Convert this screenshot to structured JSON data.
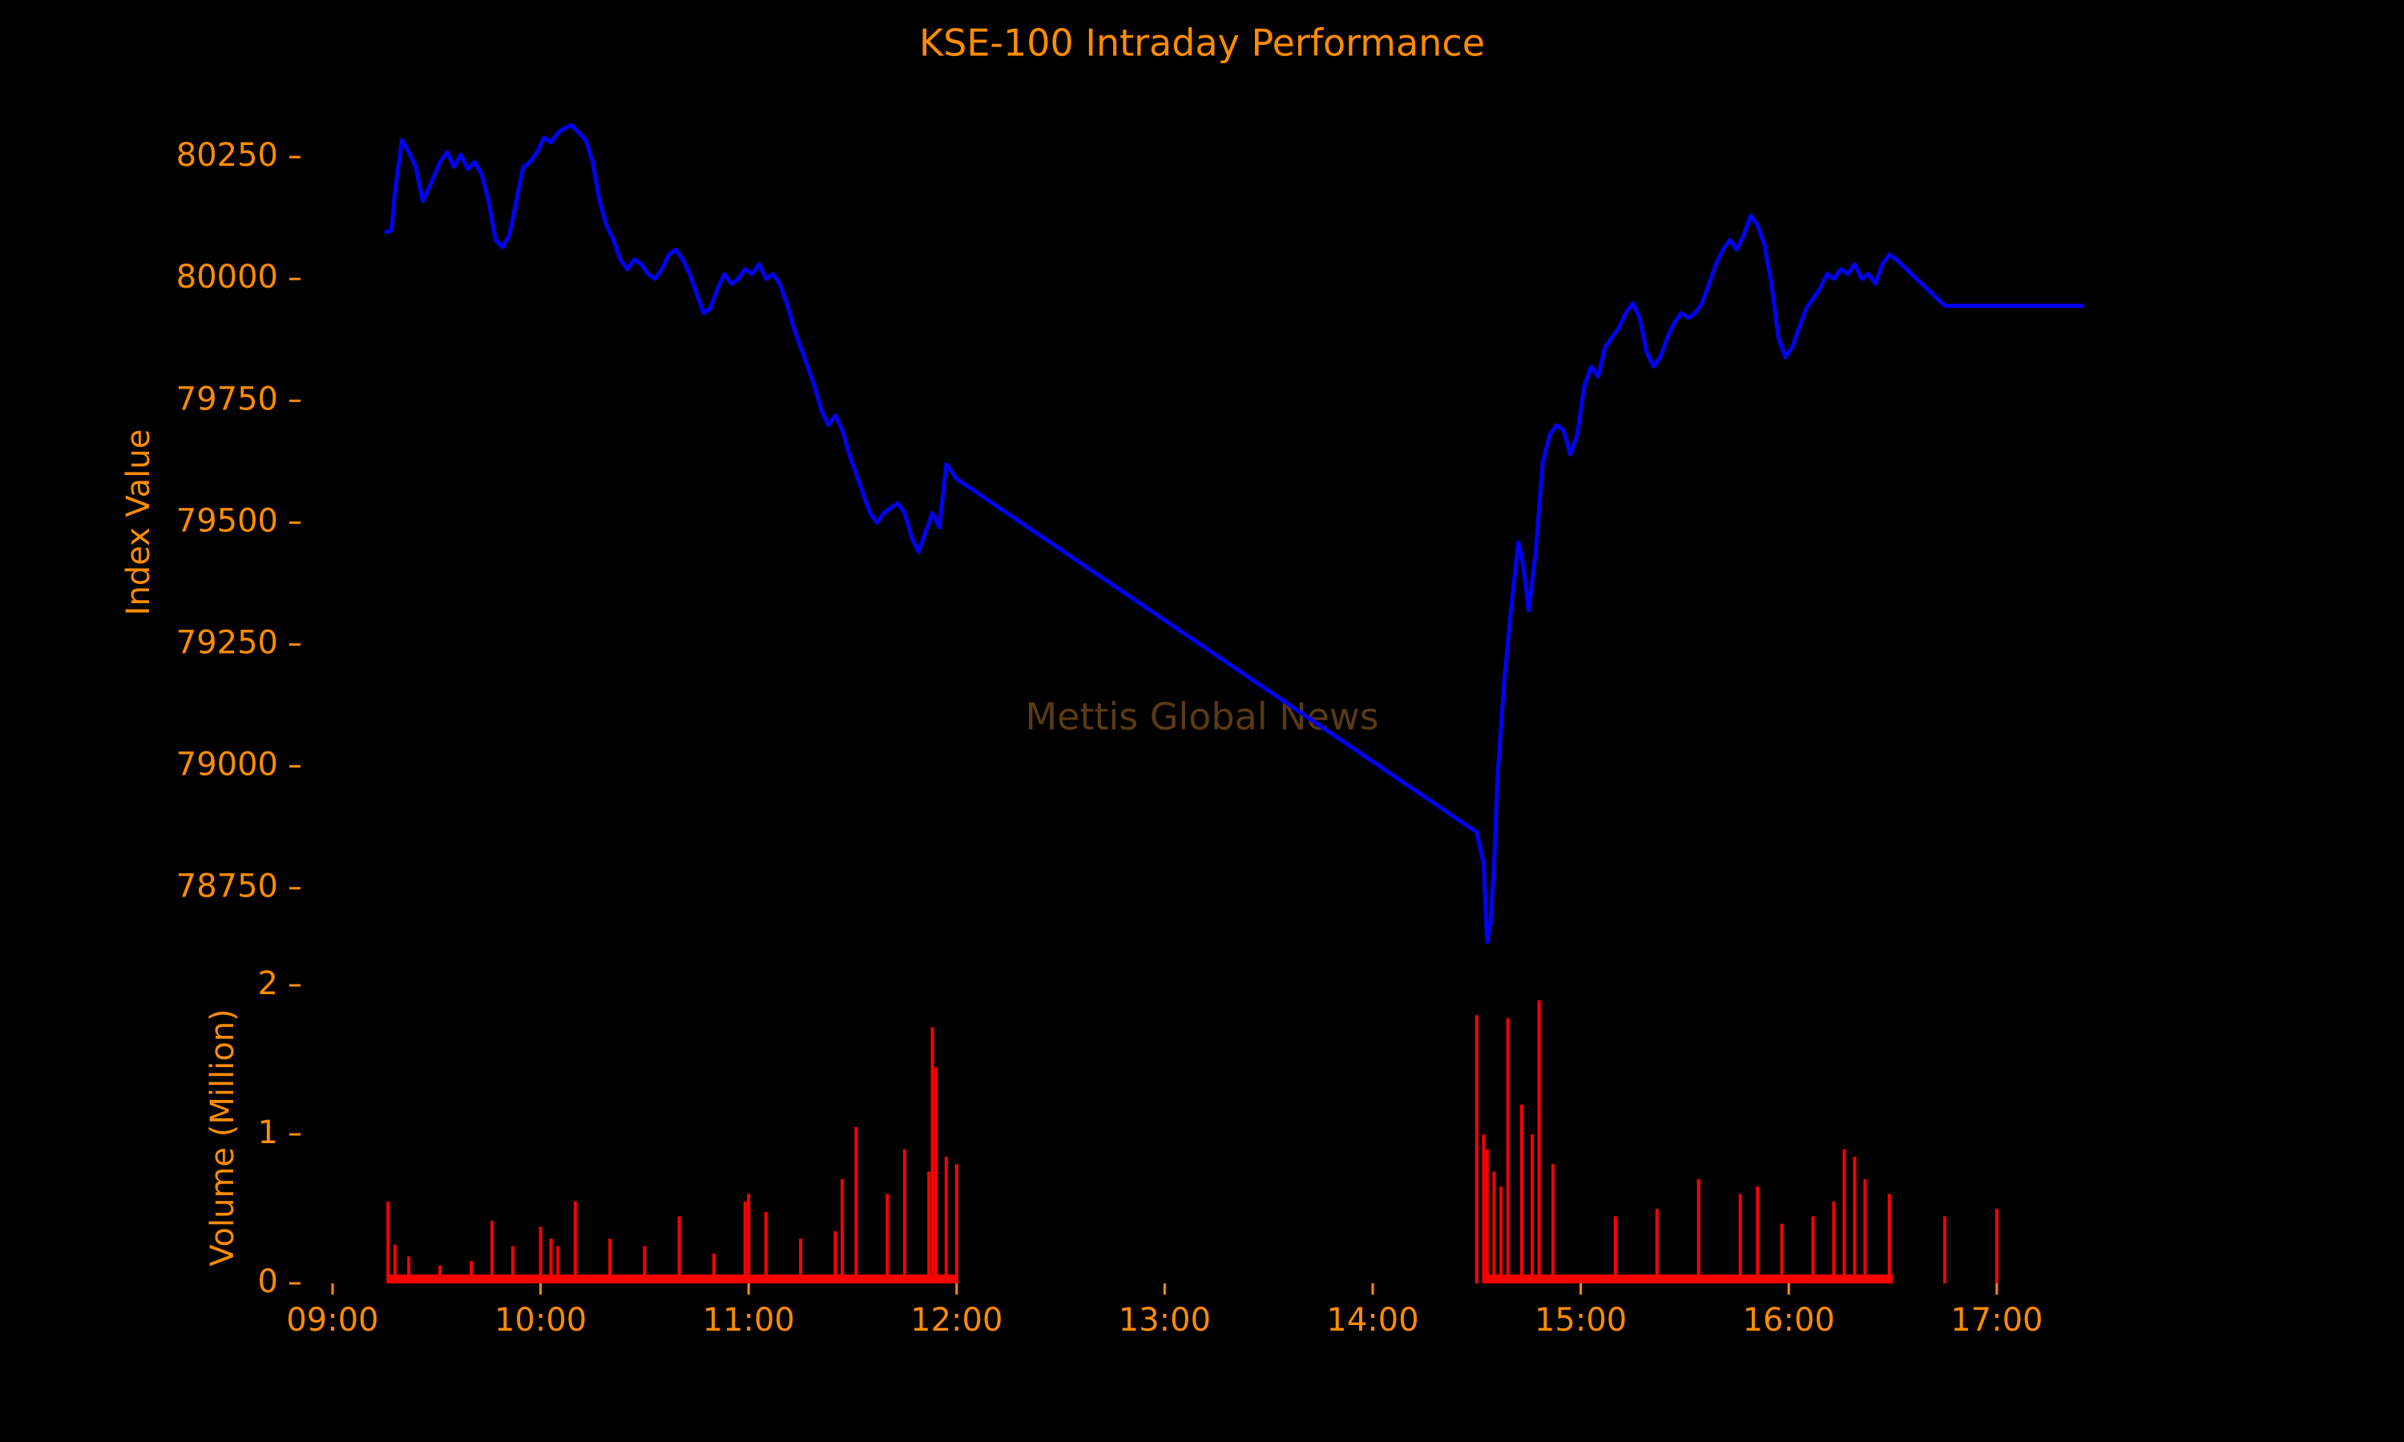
{
  "chart_data": {
    "type": "line",
    "title": "KSE-100 Intraday Performance",
    "watermark": "Mettis Global News",
    "colors": {
      "background": "#000000",
      "text": "#ff8c00",
      "index_line": "#0000ff",
      "volume_bars": "#ff0000",
      "watermark": "#5a3a14"
    },
    "grid": false,
    "x_axis": {
      "xlim": [
        "09:00",
        "17:25"
      ],
      "ticks": [
        "09:00",
        "10:00",
        "11:00",
        "12:00",
        "13:00",
        "14:00",
        "15:00",
        "16:00",
        "17:00"
      ]
    },
    "index_panel": {
      "ylabel": "Index Value",
      "ylim": [
        78600,
        80380
      ],
      "yticks": [
        78750,
        79000,
        79250,
        79500,
        79750,
        80000,
        80250
      ],
      "series": [
        {
          "values": [
            [
              "09:15",
              80095
            ],
            [
              "09:17",
              80100
            ],
            [
              "09:18",
              80180
            ],
            [
              "09:20",
              80285
            ],
            [
              "09:22",
              80260
            ],
            [
              "09:24",
              80230
            ],
            [
              "09:26",
              80160
            ],
            [
              "09:28",
              80190
            ],
            [
              "09:31",
              80240
            ],
            [
              "09:33",
              80260
            ],
            [
              "09:35",
              80230
            ],
            [
              "09:37",
              80255
            ],
            [
              "09:39",
              80225
            ],
            [
              "09:41",
              80240
            ],
            [
              "09:43",
              80215
            ],
            [
              "09:45",
              80160
            ],
            [
              "09:47",
              80080
            ],
            [
              "09:49",
              80065
            ],
            [
              "09:51",
              80090
            ],
            [
              "09:53",
              80160
            ],
            [
              "09:55",
              80230
            ],
            [
              "09:57",
              80240
            ],
            [
              "09:59",
              80260
            ],
            [
              "10:01",
              80290
            ],
            [
              "10:03",
              80280
            ],
            [
              "10:05",
              80300
            ],
            [
              "10:07",
              80310
            ],
            [
              "10:09",
              80315
            ],
            [
              "10:11",
              80300
            ],
            [
              "10:13",
              80285
            ],
            [
              "10:15",
              80240
            ],
            [
              "10:17",
              80160
            ],
            [
              "10:19",
              80110
            ],
            [
              "10:21",
              80080
            ],
            [
              "10:23",
              80040
            ],
            [
              "10:25",
              80020
            ],
            [
              "10:27",
              80040
            ],
            [
              "10:29",
              80030
            ],
            [
              "10:31",
              80010
            ],
            [
              "10:33",
              80000
            ],
            [
              "10:35",
              80020
            ],
            [
              "10:37",
              80050
            ],
            [
              "10:39",
              80060
            ],
            [
              "10:41",
              80040
            ],
            [
              "10:43",
              80010
            ],
            [
              "10:45",
              79970
            ],
            [
              "10:47",
              79930
            ],
            [
              "10:49",
              79940
            ],
            [
              "10:51",
              79980
            ],
            [
              "10:53",
              80010
            ],
            [
              "10:55",
              79990
            ],
            [
              "10:57",
              80000
            ],
            [
              "10:59",
              80020
            ],
            [
              "11:01",
              80010
            ],
            [
              "11:03",
              80030
            ],
            [
              "11:05",
              80000
            ],
            [
              "11:07",
              80010
            ],
            [
              "11:09",
              79990
            ],
            [
              "11:11",
              79950
            ],
            [
              "11:13",
              79900
            ],
            [
              "11:15",
              79860
            ],
            [
              "11:17",
              79820
            ],
            [
              "11:19",
              79780
            ],
            [
              "11:21",
              79730
            ],
            [
              "11:23",
              79700
            ],
            [
              "11:25",
              79720
            ],
            [
              "11:27",
              79690
            ],
            [
              "11:29",
              79640
            ],
            [
              "11:31",
              79600
            ],
            [
              "11:33",
              79560
            ],
            [
              "11:35",
              79520
            ],
            [
              "11:37",
              79500
            ],
            [
              "11:39",
              79520
            ],
            [
              "11:41",
              79530
            ],
            [
              "11:43",
              79540
            ],
            [
              "11:45",
              79520
            ],
            [
              "11:47",
              79470
            ],
            [
              "11:49",
              79440
            ],
            [
              "11:51",
              79480
            ],
            [
              "11:53",
              79520
            ],
            [
              "11:55",
              79490
            ],
            [
              "11:57",
              79620
            ],
            [
              "11:59",
              79600
            ],
            [
              "12:00",
              79590
            ],
            [
              "14:30",
              78865
            ],
            [
              "14:32",
              78800
            ],
            [
              "14:33",
              78640
            ],
            [
              "14:34",
              78680
            ],
            [
              "14:35",
              78800
            ],
            [
              "14:36",
              78980
            ],
            [
              "14:38",
              79180
            ],
            [
              "14:40",
              79330
            ],
            [
              "14:42",
              79460
            ],
            [
              "14:43",
              79430
            ],
            [
              "14:44",
              79380
            ],
            [
              "14:45",
              79320
            ],
            [
              "14:47",
              79440
            ],
            [
              "14:49",
              79620
            ],
            [
              "14:51",
              79680
            ],
            [
              "14:53",
              79700
            ],
            [
              "14:55",
              79690
            ],
            [
              "14:57",
              79640
            ],
            [
              "14:59",
              79680
            ],
            [
              "15:01",
              79780
            ],
            [
              "15:03",
              79820
            ],
            [
              "15:05",
              79800
            ],
            [
              "15:07",
              79860
            ],
            [
              "15:09",
              79880
            ],
            [
              "15:11",
              79900
            ],
            [
              "15:13",
              79930
            ],
            [
              "15:15",
              79950
            ],
            [
              "15:17",
              79920
            ],
            [
              "15:19",
              79850
            ],
            [
              "15:21",
              79820
            ],
            [
              "15:23",
              79840
            ],
            [
              "15:25",
              79880
            ],
            [
              "15:27",
              79910
            ],
            [
              "15:29",
              79930
            ],
            [
              "15:31",
              79920
            ],
            [
              "15:33",
              79930
            ],
            [
              "15:35",
              79950
            ],
            [
              "15:37",
              79990
            ],
            [
              "15:39",
              80030
            ],
            [
              "15:41",
              80060
            ],
            [
              "15:43",
              80080
            ],
            [
              "15:45",
              80060
            ],
            [
              "15:47",
              80090
            ],
            [
              "15:49",
              80130
            ],
            [
              "15:51",
              80110
            ],
            [
              "15:53",
              80070
            ],
            [
              "15:55",
              79990
            ],
            [
              "15:57",
              79880
            ],
            [
              "15:59",
              79840
            ],
            [
              "16:01",
              79860
            ],
            [
              "16:03",
              79900
            ],
            [
              "16:05",
              79940
            ],
            [
              "16:07",
              79960
            ],
            [
              "16:09",
              79980
            ],
            [
              "16:11",
              80010
            ],
            [
              "16:13",
              80000
            ],
            [
              "16:15",
              80020
            ],
            [
              "16:17",
              80010
            ],
            [
              "16:19",
              80030
            ],
            [
              "16:21",
              80000
            ],
            [
              "16:23",
              80010
            ],
            [
              "16:25",
              79990
            ],
            [
              "16:27",
              80030
            ],
            [
              "16:29",
              80050
            ],
            [
              "16:31",
              80040
            ],
            [
              "16:45",
              79945
            ],
            [
              "17:25",
              79945
            ]
          ]
        }
      ]
    },
    "volume_panel": {
      "ylabel": "Volume (Million)",
      "ylim": [
        0,
        2
      ],
      "yticks": [
        0,
        1,
        2
      ],
      "series": [
        {
          "type": "bar",
          "values": [
            [
              "09:16",
              0.55
            ],
            [
              "09:18",
              0.26
            ],
            [
              "09:22",
              0.18
            ],
            [
              "09:31",
              0.12
            ],
            [
              "09:40",
              0.15
            ],
            [
              "09:46",
              0.42
            ],
            [
              "09:52",
              0.25
            ],
            [
              "10:00",
              0.38
            ],
            [
              "10:03",
              0.3
            ],
            [
              "10:05",
              0.25
            ],
            [
              "10:10",
              0.55
            ],
            [
              "10:20",
              0.3
            ],
            [
              "10:30",
              0.25
            ],
            [
              "10:40",
              0.45
            ],
            [
              "10:50",
              0.2
            ],
            [
              "10:59",
              0.55
            ],
            [
              "11:00",
              0.6
            ],
            [
              "11:05",
              0.48
            ],
            [
              "11:15",
              0.3
            ],
            [
              "11:25",
              0.35
            ],
            [
              "11:27",
              0.7
            ],
            [
              "11:31",
              1.05
            ],
            [
              "11:40",
              0.6
            ],
            [
              "11:45",
              0.9
            ],
            [
              "11:52",
              0.75
            ],
            [
              "11:53",
              1.72
            ],
            [
              "11:54",
              1.45
            ],
            [
              "11:57",
              0.85
            ],
            [
              "12:00",
              0.8
            ],
            [
              "14:30",
              1.8
            ],
            [
              "14:32",
              1.0
            ],
            [
              "14:33",
              0.9
            ],
            [
              "14:35",
              0.75
            ],
            [
              "14:37",
              0.65
            ],
            [
              "14:39",
              1.78
            ],
            [
              "14:43",
              1.2
            ],
            [
              "14:46",
              1.0
            ],
            [
              "14:48",
              1.9
            ],
            [
              "14:52",
              0.8
            ],
            [
              "15:10",
              0.45
            ],
            [
              "15:22",
              0.5
            ],
            [
              "15:34",
              0.7
            ],
            [
              "15:46",
              0.6
            ],
            [
              "15:51",
              0.65
            ],
            [
              "15:58",
              0.4
            ],
            [
              "16:07",
              0.45
            ],
            [
              "16:13",
              0.55
            ],
            [
              "16:16",
              0.9
            ],
            [
              "16:19",
              0.85
            ],
            [
              "16:22",
              0.7
            ],
            [
              "16:29",
              0.6
            ],
            [
              "16:45",
              0.45
            ],
            [
              "17:00",
              0.5
            ]
          ],
          "background_level": 0.06
        }
      ]
    }
  }
}
